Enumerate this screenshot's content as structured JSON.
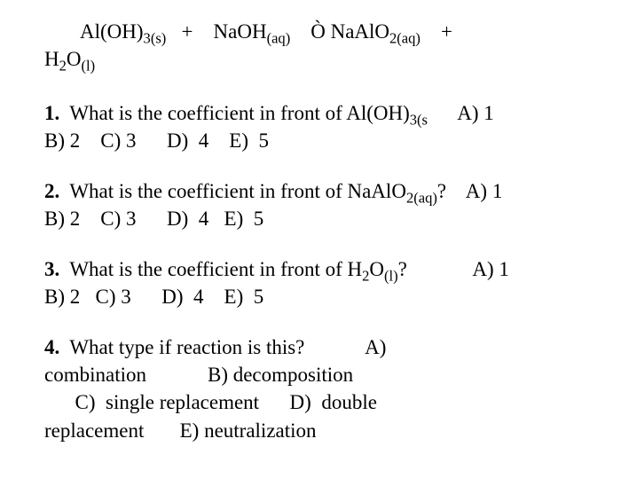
{
  "equation": {
    "line1_parts": {
      "reactant1": "Al(OH)",
      "r1_sub": "3(s)",
      "plus1": "   +    ",
      "reactant2": "NaOH",
      "r2_sub": "(aq)",
      "arrow": "    Ò ",
      "product1": "NaAlO",
      "p1_sub": "2(aq)",
      "plus2": "    +"
    },
    "line2_parts": {
      "product2": "H",
      "p2_sub1": "2",
      "product2b": "O",
      "p2_sub2": "(l)"
    }
  },
  "q1": {
    "num": "1.",
    "text_pre": "  What is the coefficient in front of Al(OH)",
    "text_sub": "3(s",
    "optA": "      A) 1",
    "line2": "B) 2    C) 3      D)  4    E)  5"
  },
  "q2": {
    "num": "2.",
    "text_pre": "  What is the coefficient in front of NaAlO",
    "text_sub": "2(aq)",
    "text_post": "?",
    "optA": "    A) 1",
    "line2": "B) 2    C) 3      D)  4   E)  5"
  },
  "q3": {
    "num": "3.",
    "text_pre": "  What is the coefficient in front of H",
    "sub1": "2",
    "mid": "O",
    "sub2": "(l)",
    "text_post": "?",
    "optA": "             A) 1",
    "line2": "B) 2   C) 3      D)  4    E)  5"
  },
  "q4": {
    "num": "4.",
    "text": "  What type if reaction is this?",
    "optA": "            A)",
    "line2": "combination            B) decomposition",
    "line3": "      C)  single replacement      D)  double",
    "line4": "replacement       E) neutralization"
  }
}
